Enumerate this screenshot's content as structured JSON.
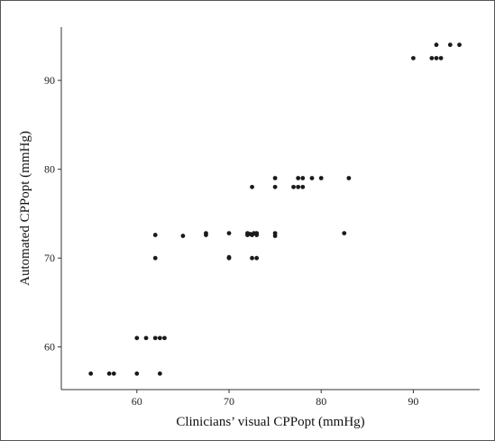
{
  "chart_data": {
    "type": "scatter",
    "title": "",
    "xlabel": "Clinicians’ visual CPPopt (mmHg)",
    "ylabel": "Automated CPPopt (mmHg)",
    "xlim": [
      51.8,
      97.2
    ],
    "ylim": [
      55.2,
      96.0
    ],
    "xticks": [
      60,
      70,
      80,
      90
    ],
    "yticks": [
      60,
      70,
      80,
      90
    ],
    "grid": false,
    "legend": "none",
    "point_color": "#1a1a1a",
    "points": [
      {
        "x": 55.0,
        "y": 57.0
      },
      {
        "x": 57.0,
        "y": 57.0
      },
      {
        "x": 57.5,
        "y": 57.0
      },
      {
        "x": 60.0,
        "y": 57.0
      },
      {
        "x": 62.5,
        "y": 57.0
      },
      {
        "x": 60.0,
        "y": 61.0
      },
      {
        "x": 61.0,
        "y": 61.0
      },
      {
        "x": 62.0,
        "y": 61.0
      },
      {
        "x": 62.5,
        "y": 61.0
      },
      {
        "x": 63.0,
        "y": 61.0
      },
      {
        "x": 62.0,
        "y": 70.0
      },
      {
        "x": 62.0,
        "y": 72.6
      },
      {
        "x": 65.0,
        "y": 72.5
      },
      {
        "x": 67.5,
        "y": 72.6
      },
      {
        "x": 67.5,
        "y": 72.8
      },
      {
        "x": 70.0,
        "y": 72.8
      },
      {
        "x": 70.0,
        "y": 70.0
      },
      {
        "x": 70.0,
        "y": 70.1
      },
      {
        "x": 72.0,
        "y": 72.6
      },
      {
        "x": 72.0,
        "y": 72.8
      },
      {
        "x": 72.3,
        "y": 72.7
      },
      {
        "x": 72.5,
        "y": 72.6
      },
      {
        "x": 72.7,
        "y": 72.8
      },
      {
        "x": 73.0,
        "y": 72.6
      },
      {
        "x": 73.0,
        "y": 72.8
      },
      {
        "x": 72.5,
        "y": 78.0
      },
      {
        "x": 72.5,
        "y": 70.0
      },
      {
        "x": 73.0,
        "y": 70.0
      },
      {
        "x": 75.0,
        "y": 72.5
      },
      {
        "x": 75.0,
        "y": 72.8
      },
      {
        "x": 75.0,
        "y": 78.0
      },
      {
        "x": 75.0,
        "y": 79.0
      },
      {
        "x": 77.0,
        "y": 78.0
      },
      {
        "x": 77.5,
        "y": 78.0
      },
      {
        "x": 77.5,
        "y": 79.0
      },
      {
        "x": 78.0,
        "y": 78.0
      },
      {
        "x": 78.0,
        "y": 79.0
      },
      {
        "x": 79.0,
        "y": 79.0
      },
      {
        "x": 80.0,
        "y": 79.0
      },
      {
        "x": 83.0,
        "y": 79.0
      },
      {
        "x": 82.5,
        "y": 72.8
      },
      {
        "x": 90.0,
        "y": 92.5
      },
      {
        "x": 92.0,
        "y": 92.5
      },
      {
        "x": 92.5,
        "y": 92.5
      },
      {
        "x": 93.0,
        "y": 92.5
      },
      {
        "x": 92.5,
        "y": 94.0
      },
      {
        "x": 94.0,
        "y": 94.0
      },
      {
        "x": 95.0,
        "y": 94.0
      }
    ]
  }
}
